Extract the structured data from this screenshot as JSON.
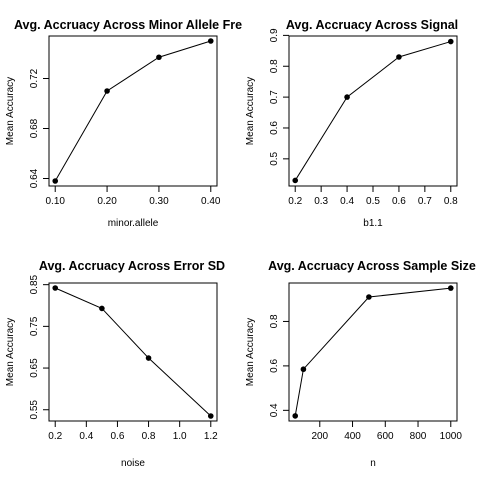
{
  "chart_data": [
    {
      "type": "line",
      "title": "Avg. Accruacy Across Minor Allele Fre",
      "xlabel": "minor.allele",
      "ylabel": "Mean Accuracy",
      "x": [
        0.1,
        0.2,
        0.3,
        0.4
      ],
      "y": [
        0.638,
        0.71,
        0.737,
        0.75
      ],
      "xlim": [
        0.088,
        0.412
      ],
      "ylim": [
        0.634,
        0.754
      ],
      "xticks": [
        "0.10",
        "0.20",
        "0.30",
        "0.40"
      ],
      "yticks": [
        "0.64",
        "0.68",
        "0.72"
      ],
      "grid": false
    },
    {
      "type": "line",
      "title": "Avg. Accruacy Across Signal",
      "xlabel": "b1.1",
      "ylabel": "Mean Accuracy",
      "x": [
        0.2,
        0.4,
        0.6,
        0.8
      ],
      "y": [
        0.43,
        0.7,
        0.83,
        0.88
      ],
      "xlim": [
        0.176,
        0.824
      ],
      "ylim": [
        0.412,
        0.898
      ],
      "xticks": [
        "0.2",
        "0.3",
        "0.4",
        "0.5",
        "0.6",
        "0.7",
        "0.8"
      ],
      "yticks": [
        "0.5",
        "0.6",
        "0.7",
        "0.8",
        "0.9"
      ],
      "grid": false
    },
    {
      "type": "line",
      "title": "Avg. Accruacy Across Error SD",
      "xlabel": "noise",
      "ylabel": "Mean Accuracy",
      "x": [
        0.2,
        0.5,
        0.8,
        1.2
      ],
      "y": [
        0.842,
        0.793,
        0.674,
        0.535
      ],
      "xlim": [
        0.16,
        1.24
      ],
      "ylim": [
        0.523,
        0.854
      ],
      "xticks": [
        "0.2",
        "0.4",
        "0.6",
        "0.8",
        "1.0",
        "1.2"
      ],
      "yticks": [
        "0.55",
        "0.65",
        "0.75",
        "0.85"
      ],
      "grid": false
    },
    {
      "type": "line",
      "title": "Avg. Accruacy Across Sample Size",
      "xlabel": "n",
      "ylabel": "Mean Accuracy",
      "x": [
        50,
        100,
        500,
        1000
      ],
      "y": [
        0.375,
        0.585,
        0.91,
        0.95
      ],
      "xlim": [
        12,
        1038
      ],
      "ylim": [
        0.352,
        0.973
      ],
      "xticks": [
        "200",
        "400",
        "600",
        "800",
        "1000"
      ],
      "yticks": [
        "0.4",
        "0.6",
        "0.8"
      ],
      "grid": false
    }
  ]
}
